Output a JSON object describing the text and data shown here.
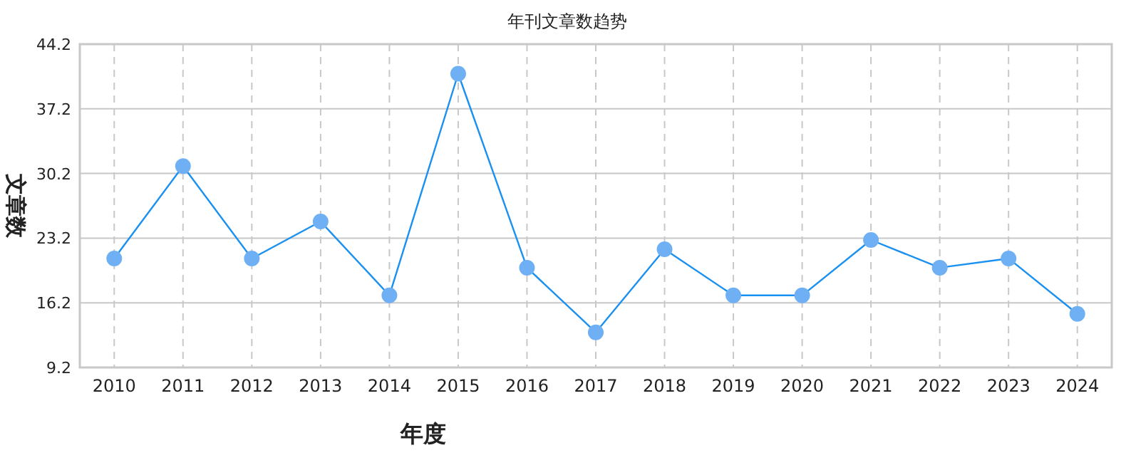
{
  "chart_data": {
    "type": "line",
    "title": "年刊文章数趋势",
    "xlabel": "年度",
    "ylabel": "文章数",
    "categories": [
      "2010",
      "2011",
      "2012",
      "2013",
      "2014",
      "2015",
      "2016",
      "2017",
      "2018",
      "2019",
      "2020",
      "2021",
      "2022",
      "2023",
      "2024"
    ],
    "series": [
      {
        "color": "#1a90f0",
        "values": [
          21,
          31,
          21,
          25,
          17,
          41,
          20,
          13,
          22,
          17,
          17,
          23,
          20,
          21,
          15
        ]
      }
    ],
    "ylim": [
      9.2,
      44.2
    ],
    "yticks": [
      9.2,
      16.2,
      23.2,
      30.2,
      37.2,
      44.2
    ],
    "grid": true,
    "marker": "circle",
    "line_style": "solid"
  }
}
